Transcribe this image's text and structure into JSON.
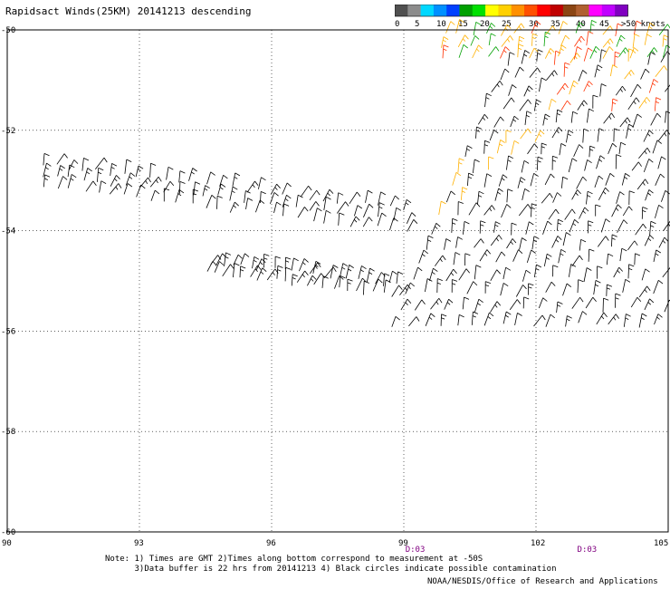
{
  "title": "Rapidsact Winds(25KM) 20141213 descending",
  "colorbar": {
    "labels": [
      "0",
      "5",
      "10",
      "15",
      "20",
      "25",
      "30",
      "35",
      "40",
      "45",
      ">50 knots"
    ],
    "colors": [
      "#505050",
      "#8c8c8c",
      "#00d8ff",
      "#0090ff",
      "#0040ff",
      "#00a000",
      "#00e000",
      "#ffff00",
      "#ffd000",
      "#ff9000",
      "#ff5000",
      "#ff0000",
      "#c00000",
      "#8b4513",
      "#b06030",
      "#ff00ff",
      "#c000ff",
      "#8000c0"
    ]
  },
  "axes": {
    "lon_ticks": [
      "90",
      "93",
      "96",
      "99",
      "102",
      "105"
    ],
    "lon_values": [
      90,
      93,
      96,
      99,
      102,
      105
    ],
    "lat_ticks": [
      "-50",
      "-52",
      "-54",
      "-56",
      "-58",
      "-60"
    ],
    "lat_values": [
      -50,
      -52,
      -54,
      -56,
      -58,
      -60
    ],
    "lon_range": [
      90,
      105
    ],
    "lat_range": [
      -50,
      -60
    ]
  },
  "pass_times": [
    {
      "label": "D:03",
      "lon": 99.2
    },
    {
      "label": "D:03",
      "lon": 103.1
    }
  ],
  "notes": {
    "line1": "Note: 1) Times are GMT 2)Times along bottom correspond to measurement at -50S",
    "line2": "      3)Data buffer is 22 hrs from 20141213 4) Black circles indicate possible contamination"
  },
  "credit": "NOAA/NESDIS/Office of Research and Applications",
  "icons": {
    "wind-barb": "wind-barb-icon"
  }
}
